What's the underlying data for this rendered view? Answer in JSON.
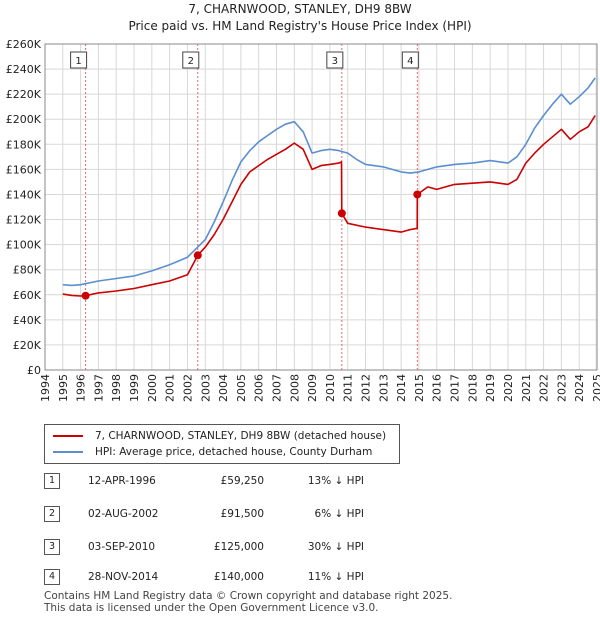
{
  "chart_data": {
    "type": "line",
    "title": "7, CHARNWOOD, STANLEY, DH9 8BW",
    "subtitle": "Price paid vs. HM Land Registry's House Price Index (HPI)",
    "xlabel": "",
    "ylabel": "",
    "xlim": [
      1994,
      2025
    ],
    "ylim": [
      0,
      260000
    ],
    "grid": true,
    "x_ticks": [
      "1994",
      "1995",
      "1996",
      "1997",
      "1998",
      "1999",
      "2000",
      "2001",
      "2002",
      "2003",
      "2004",
      "2005",
      "2006",
      "2007",
      "2008",
      "2009",
      "2010",
      "2011",
      "2012",
      "2013",
      "2014",
      "2015",
      "2016",
      "2017",
      "2018",
      "2019",
      "2020",
      "2021",
      "2022",
      "2023",
      "2024",
      "2025"
    ],
    "y_ticks": [
      {
        "value": 0,
        "label": "£0"
      },
      {
        "value": 20000,
        "label": "£20K"
      },
      {
        "value": 40000,
        "label": "£40K"
      },
      {
        "value": 60000,
        "label": "£60K"
      },
      {
        "value": 80000,
        "label": "£80K"
      },
      {
        "value": 100000,
        "label": "£100K"
      },
      {
        "value": 120000,
        "label": "£120K"
      },
      {
        "value": 140000,
        "label": "£140K"
      },
      {
        "value": 160000,
        "label": "£160K"
      },
      {
        "value": 180000,
        "label": "£180K"
      },
      {
        "value": 200000,
        "label": "£200K"
      },
      {
        "value": 220000,
        "label": "£220K"
      },
      {
        "value": 240000,
        "label": "£240K"
      },
      {
        "value": 260000,
        "label": "£260K"
      }
    ],
    "series": [
      {
        "name": "7, CHARNWOOD, STANLEY, DH9 8BW (detached house)",
        "color": "#cc0000",
        "x": [
          1995.0,
          1995.5,
          1996.0,
          1996.28,
          1997.0,
          1998.0,
          1999.0,
          2000.0,
          2001.0,
          2002.0,
          2002.58,
          2003.0,
          2003.5,
          2004.0,
          2004.5,
          2005.0,
          2005.5,
          2006.0,
          2006.5,
          2007.0,
          2007.5,
          2008.0,
          2008.5,
          2009.0,
          2009.5,
          2010.0,
          2010.5,
          2010.65,
          2010.67,
          2011.0,
          2012.0,
          2013.0,
          2014.0,
          2014.5,
          2014.9,
          2014.91,
          2015.5,
          2016.0,
          2017.0,
          2018.0,
          2019.0,
          2020.0,
          2020.5,
          2021.0,
          2021.5,
          2022.0,
          2022.5,
          2023.0,
          2023.5,
          2024.0,
          2024.5,
          2024.9
        ],
        "y": [
          60500,
          59500,
          59000,
          59250,
          61500,
          63000,
          65000,
          68000,
          71000,
          76000,
          91500,
          98000,
          108000,
          120000,
          134000,
          148000,
          158000,
          163000,
          168000,
          172000,
          176000,
          181000,
          176000,
          160000,
          163000,
          164000,
          165000,
          166000,
          125000,
          117000,
          114000,
          112000,
          110000,
          112000,
          113000,
          140000,
          146000,
          144000,
          148000,
          149000,
          150000,
          148000,
          152000,
          165000,
          173000,
          180000,
          186000,
          192000,
          184000,
          190000,
          194000,
          203000
        ]
      },
      {
        "name": "HPI: Average price, detached house, County Durham",
        "color": "#5b8fd0",
        "x": [
          1995.0,
          1995.5,
          1996.0,
          1997.0,
          1998.0,
          1999.0,
          2000.0,
          2001.0,
          2002.0,
          2003.0,
          2003.5,
          2004.0,
          2004.5,
          2005.0,
          2005.5,
          2006.0,
          2006.5,
          2007.0,
          2007.5,
          2008.0,
          2008.5,
          2009.0,
          2009.5,
          2010.0,
          2010.5,
          2011.0,
          2011.5,
          2012.0,
          2013.0,
          2014.0,
          2014.5,
          2015.0,
          2016.0,
          2017.0,
          2018.0,
          2019.0,
          2020.0,
          2020.5,
          2021.0,
          2021.5,
          2022.0,
          2022.5,
          2023.0,
          2023.5,
          2024.0,
          2024.5,
          2024.9
        ],
        "y": [
          68000,
          67500,
          68000,
          71000,
          73000,
          75000,
          79000,
          84000,
          90000,
          104000,
          118000,
          134000,
          151000,
          166000,
          175000,
          182000,
          187000,
          192000,
          196000,
          198000,
          190000,
          173000,
          175000,
          176000,
          175000,
          173000,
          168000,
          164000,
          162000,
          158000,
          157000,
          158000,
          162000,
          164000,
          165000,
          167000,
          165000,
          170000,
          180000,
          193000,
          203000,
          212000,
          220000,
          212000,
          218000,
          225000,
          233000
        ]
      }
    ],
    "annotations": [
      {
        "id": "1",
        "x": 1996.28,
        "y": 59250
      },
      {
        "id": "2",
        "x": 2002.58,
        "y": 91500
      },
      {
        "id": "3",
        "x": 2010.67,
        "y": 125000
      },
      {
        "id": "4",
        "x": 2014.91,
        "y": 140000
      }
    ],
    "shaded_future_start": 2024.9
  },
  "legend": {
    "items": [
      {
        "label": "7, CHARNWOOD, STANLEY, DH9 8BW (detached house)",
        "color": "#cc0000"
      },
      {
        "label": "HPI: Average price, detached house, County Durham",
        "color": "#5b8fd0"
      }
    ]
  },
  "sales": [
    {
      "id": "1",
      "date": "12-APR-1996",
      "price": "£59,250",
      "hpi": "13% ↓ HPI"
    },
    {
      "id": "2",
      "date": "02-AUG-2002",
      "price": "£91,500",
      "hpi": "6% ↓ HPI"
    },
    {
      "id": "3",
      "date": "03-SEP-2010",
      "price": "£125,000",
      "hpi": "30% ↓ HPI"
    },
    {
      "id": "4",
      "date": "28-NOV-2014",
      "price": "£140,000",
      "hpi": "11% ↓ HPI"
    }
  ],
  "footer": {
    "line1": "Contains HM Land Registry data © Crown copyright and database right 2025.",
    "line2": "This data is licensed under the Open Government Licence v3.0."
  }
}
